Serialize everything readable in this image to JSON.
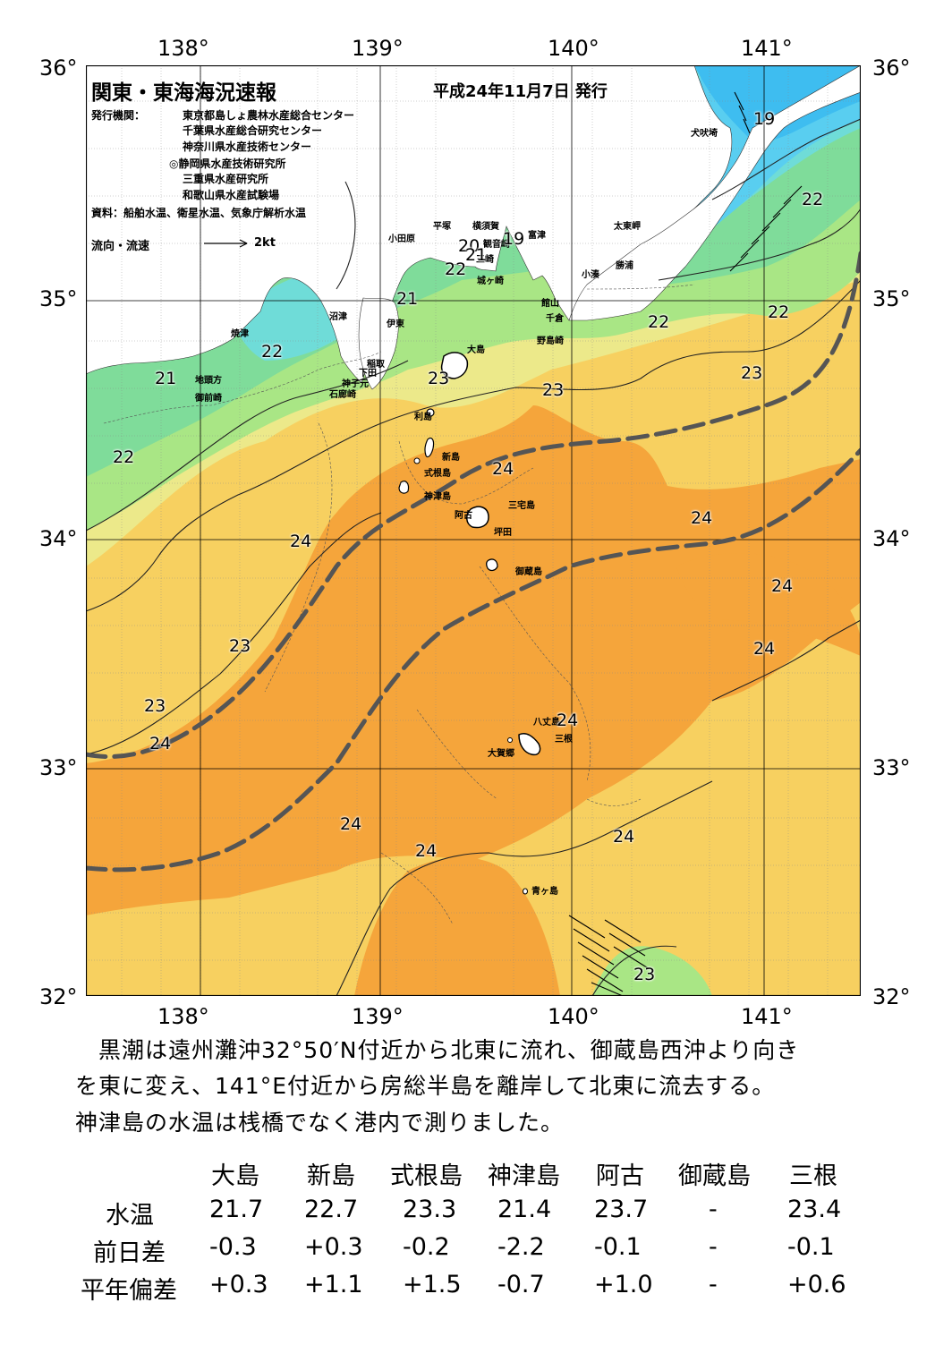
{
  "title": "関東・東海海況速報",
  "issued": "平成24年11月7日 発行",
  "publisher_label": "発行機関：",
  "publishers": [
    "東京都島しょ農林水産総合センター",
    "千葉県水産総合研究センター",
    "神奈川県水産技術センター",
    "◎静岡県水産技術研究所",
    "三重県水産研究所",
    "和歌山県水産試験場"
  ],
  "source": "資料：船舶水温、衛星水温、気象庁解析水温",
  "legend": {
    "label": "流向・流速",
    "speed": "2kt"
  },
  "axes": {
    "lon": [
      "138°",
      "139°",
      "140°",
      "141°"
    ],
    "lat": [
      "36°",
      "35°",
      "34°",
      "33°",
      "32°"
    ]
  },
  "places": {
    "odawara": "小田原",
    "hiratsuka": "平塚",
    "yokosuka": "横須賀",
    "kannonzaki": "観音崎",
    "futtsu": "富津",
    "taitomisaki": "太東岬",
    "inubozaki": "犬吠埼",
    "katsuura": "勝浦",
    "kominato": "小湊",
    "tateyama": "館山",
    "chikura": "千倉",
    "nojimazaki": "野島崎",
    "misaki": "三崎",
    "jogasaki": "城ヶ崎",
    "numazu": "沼津",
    "ito": "伊東",
    "yaizu": "焼津",
    "inatori": "稲取",
    "shimoda": "下田",
    "mikomoto": "神子元",
    "irozaki": "石廊崎",
    "jitogata": "地頭方",
    "omaezaki": "御前崎",
    "oshima": "大島",
    "toshima": "利島",
    "niijima": "新島",
    "shikinejima": "式根島",
    "kozushima": "神津島",
    "miyakejima": "三宅島",
    "ako": "阿古",
    "tsubota": "坪田",
    "mikurajima": "御蔵島",
    "hachijojima": "八丈島",
    "mitsune": "三根",
    "okago": "大賀郷",
    "aogashima": "青ヶ島"
  },
  "temps": {
    "t19a": "19",
    "t19b": "19",
    "t20": "20",
    "t21a": "21",
    "t21b": "21",
    "t21c": "21",
    "t22a": "22",
    "t22b": "22",
    "t22c": "22",
    "t22d": "22",
    "t22e": "22",
    "t22f": "22",
    "t23a": "23",
    "t23b": "23",
    "t23c": "23",
    "t23d": "23",
    "t23e": "23",
    "t23f": "23",
    "t24a": "24",
    "t24b": "24",
    "t24c": "24",
    "t24d": "24",
    "t24e": "24",
    "t24f": "24",
    "t24g": "24",
    "t24h": "24",
    "t24i": "24",
    "t24j": "24"
  },
  "description": [
    "　黒潮は遠州灘沖32°50′N付近から北東に流れ、御蔵島西沖より向き",
    "を東に変え、141°E付近から房総半島を離岸して北東に流去する。",
    "神津島の水温は桟橋でなく港内で測りました。"
  ],
  "table": {
    "stations": [
      "大島",
      "新島",
      "式根島",
      "神津島",
      "阿古",
      "御蔵島",
      "三根"
    ],
    "rows": [
      {
        "label": "水温",
        "values": [
          "21.7",
          "22.7",
          "23.3",
          "21.4",
          "23.7",
          "-",
          "23.4"
        ]
      },
      {
        "label": "前日差",
        "values": [
          "-0.3",
          "+0.3",
          "-0.2",
          "-2.2",
          "-0.1",
          "-",
          "-0.1"
        ]
      },
      {
        "label": "平年偏差",
        "values": [
          "+0.3",
          "+1.1",
          "+1.5",
          "-0.7",
          "+1.0",
          "-",
          "+0.6"
        ]
      }
    ]
  },
  "colors": {
    "t18": "#3ebdf0",
    "t19": "#59cef0",
    "t20": "#6fdcd8",
    "t21": "#7fdc9a",
    "t22": "#a9e685",
    "t23": "#ece98a",
    "t24": "#f7d060",
    "t24h": "#f5a53b",
    "land": "#ffffff",
    "kuroshio": "#555555"
  }
}
